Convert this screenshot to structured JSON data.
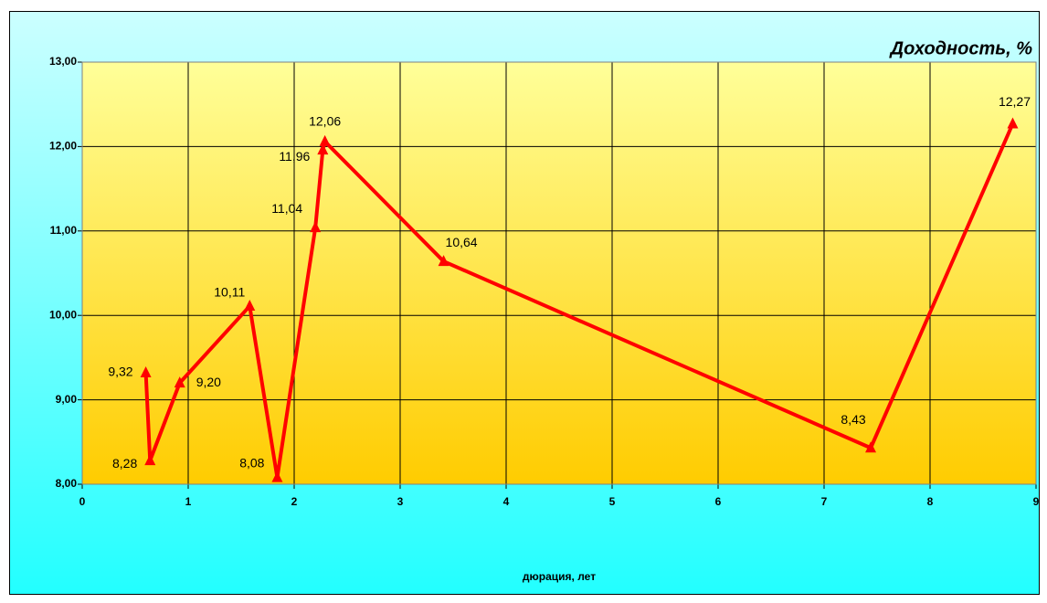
{
  "chart_data": {
    "type": "line",
    "title": "Доходность, %",
    "x_label": "дюрация, лет",
    "x": [
      0.6,
      0.64,
      0.92,
      1.58,
      1.84,
      2.2,
      2.27,
      2.29,
      3.41,
      7.44,
      8.78
    ],
    "series": [
      {
        "name": "Доходность",
        "color": "#ff0000",
        "values": [
          9.32,
          8.28,
          9.2,
          10.11,
          8.08,
          11.04,
          11.96,
          12.06,
          10.64,
          8.43,
          12.27
        ],
        "value_labels": [
          "9,32",
          "8,28",
          "9,20",
          "10,11",
          "8,08",
          "11,04",
          "11,96",
          "12,06",
          "10,64",
          "8,43",
          "12,27"
        ]
      }
    ],
    "xlim": [
      0,
      9
    ],
    "xticks": [
      0,
      1,
      2,
      3,
      4,
      5,
      6,
      7,
      8,
      9
    ],
    "ylim": [
      8,
      13
    ],
    "yticks": [
      {
        "value": 8,
        "label": "8,00"
      },
      {
        "value": 9,
        "label": "9,00"
      },
      {
        "value": 10,
        "label": "10,00"
      },
      {
        "value": 11,
        "label": "11,00"
      },
      {
        "value": 12,
        "label": "12,00"
      },
      {
        "value": 13,
        "label": "13,00"
      }
    ],
    "grid": true,
    "marker": "triangle"
  }
}
